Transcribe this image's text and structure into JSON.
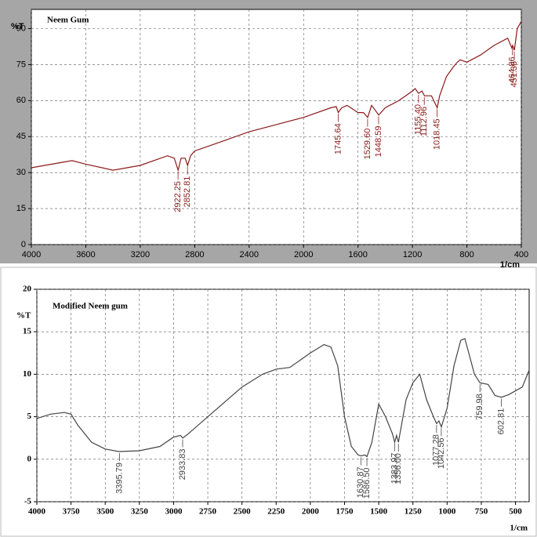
{
  "chart_data": [
    {
      "type": "line",
      "x_label": "1/cm",
      "y_label": "%T",
      "x": [
        4000,
        3800,
        3700,
        3600,
        3400,
        3200,
        3000,
        2950,
        2922,
        2900,
        2870,
        2852,
        2830,
        2800,
        2600,
        2400,
        2200,
        2000,
        1800,
        1760,
        1745,
        1720,
        1680,
        1600,
        1560,
        1529,
        1500,
        1448,
        1400,
        1300,
        1200,
        1180,
        1155,
        1130,
        1112,
        1060,
        1018,
        1000,
        950,
        900,
        870,
        850,
        800,
        700,
        600,
        500,
        470,
        464,
        451,
        430,
        400
      ],
      "series": [
        {
          "name": "Neem Gum",
          "color": "#8b1a1a",
          "values": [
            32,
            34,
            35,
            33.5,
            31,
            33,
            37,
            36,
            31,
            36,
            36,
            33,
            37,
            39,
            43,
            47,
            50,
            53,
            57,
            57.5,
            55,
            57,
            58,
            55,
            55,
            53,
            58,
            54,
            57,
            60,
            64,
            65,
            63,
            64,
            62,
            62,
            57,
            62,
            70,
            74,
            76,
            77,
            76,
            79,
            83,
            86,
            82,
            83,
            81,
            90,
            93
          ]
        }
      ],
      "xlim": [
        4000,
        400
      ],
      "xticks": [
        4000,
        3600,
        3200,
        2800,
        2400,
        2000,
        1600,
        1200,
        800,
        400
      ],
      "ylim": [
        0,
        98
      ],
      "yticks": [
        0,
        15,
        30,
        45,
        60,
        75,
        90
      ],
      "grid": true,
      "annotations": [
        {
          "x": 2922.25,
          "label": "2922.25"
        },
        {
          "x": 2852.81,
          "label": "2852.81"
        },
        {
          "x": 1745.64,
          "label": "1745.64"
        },
        {
          "x": 1529.6,
          "label": "1529.60"
        },
        {
          "x": 1448.59,
          "label": "1448.59"
        },
        {
          "x": 1155.4,
          "label": "1155.40"
        },
        {
          "x": 1112.96,
          "label": "1112.96"
        },
        {
          "x": 1018.45,
          "label": "1018.45"
        },
        {
          "x": 464.86,
          "label": "464.86"
        },
        {
          "x": 451.36,
          "label": "451.36"
        }
      ]
    },
    {
      "type": "line",
      "x_label": "1/cm",
      "y_label": "%T",
      "x": [
        4000,
        3900,
        3800,
        3750,
        3700,
        3600,
        3500,
        3400,
        3250,
        3100,
        3000,
        2950,
        2933,
        2900,
        2750,
        2500,
        2350,
        2250,
        2150,
        2000,
        1900,
        1850,
        1800,
        1750,
        1700,
        1650,
        1630,
        1600,
        1586,
        1550,
        1500,
        1450,
        1400,
        1383,
        1370,
        1356,
        1300,
        1250,
        1200,
        1150,
        1100,
        1077,
        1060,
        1042,
        1000,
        950,
        900,
        870,
        850,
        800,
        760,
        700,
        650,
        603,
        550,
        450,
        400
      ],
      "series": [
        {
          "name": "Modified Neem gum",
          "color": "#444444",
          "values": [
            4.8,
            5.3,
            5.5,
            5.3,
            4,
            2,
            1.2,
            0.9,
            1,
            1.5,
            2.6,
            2.8,
            2.5,
            2.9,
            5,
            8.5,
            10,
            10.6,
            10.8,
            12.5,
            13.5,
            13.2,
            11,
            5,
            1.5,
            0.5,
            0.4,
            0.5,
            0.3,
            2,
            6.5,
            5,
            3,
            2,
            2.8,
            2,
            7,
            9,
            10,
            7,
            5,
            4.2,
            4.5,
            3.8,
            6,
            11,
            14,
            14.2,
            13,
            10,
            9,
            8.8,
            7.5,
            7.3,
            7.6,
            8.5,
            10.5
          ]
        }
      ],
      "xlim": [
        4000,
        400
      ],
      "xticks": [
        4000,
        3750,
        3500,
        3250,
        3000,
        2750,
        2500,
        2250,
        2000,
        1750,
        1500,
        1250,
        1000,
        750,
        500
      ],
      "ylim": [
        -5,
        20
      ],
      "yticks": [
        -5,
        0,
        5,
        10,
        15,
        20
      ],
      "grid": true,
      "annotations": [
        {
          "x": 3395.79,
          "label": "3395.79"
        },
        {
          "x": 2933.83,
          "label": "2933.83"
        },
        {
          "x": 1630.87,
          "label": "1630.87"
        },
        {
          "x": 1586.5,
          "label": "1586.50"
        },
        {
          "x": 1383.97,
          "label": "1383.97"
        },
        {
          "x": 1356.0,
          "label": "1356.00"
        },
        {
          "x": 1077.28,
          "label": "1077.28"
        },
        {
          "x": 1042.56,
          "label": "1042.56"
        },
        {
          "x": 759.98,
          "label": "759.98"
        },
        {
          "x": 602.81,
          "label": "602.81"
        }
      ]
    }
  ]
}
